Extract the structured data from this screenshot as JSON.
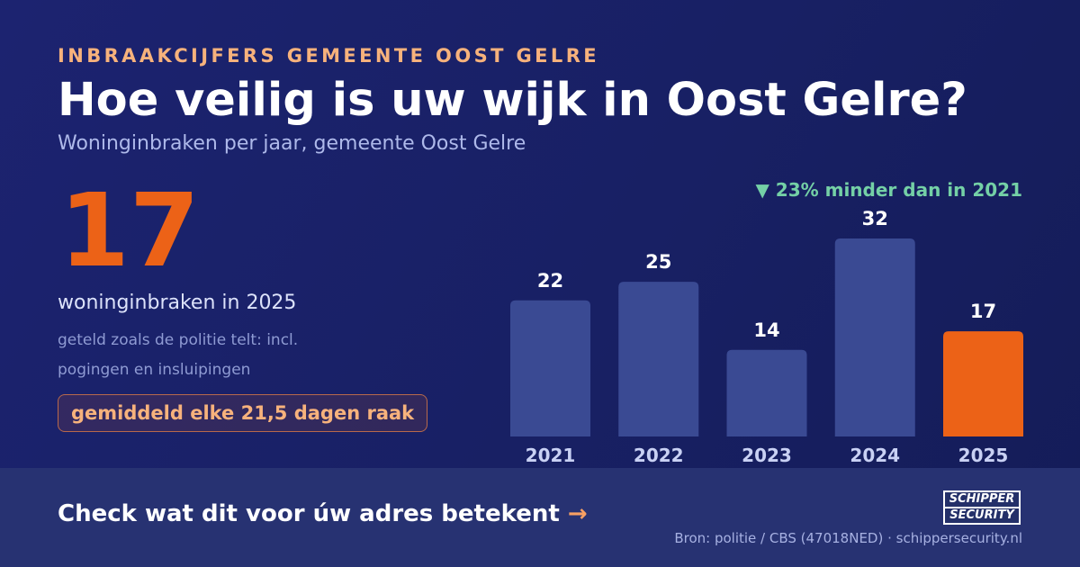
{
  "header": {
    "eyebrow": "INBRAAKCIJFERS GEMEENTE OOST GELRE",
    "title": "Hoe veilig is uw wijk in Oost Gelre?",
    "subtitle": "Woninginbraken per jaar, gemeente Oost Gelre"
  },
  "stat": {
    "value": "17",
    "label": "woninginbraken in 2025",
    "note": "geteld zoals de politie telt: incl. pogingen en insluipingen",
    "pill": "gemiddeld elke 21,5 dagen raak"
  },
  "trend": {
    "text": "▼ 23% minder dan in 2021"
  },
  "chart_data": {
    "type": "bar",
    "categories": [
      "2021",
      "2022",
      "2023",
      "2024",
      "2025"
    ],
    "values": [
      22,
      25,
      14,
      32,
      17
    ],
    "highlight_index": 4,
    "bar_color": "#3a4a93",
    "highlight_color": "#ec6217",
    "grid": false,
    "legend": "none"
  },
  "footer": {
    "cta": "Check wat dit voor úw adres betekent",
    "cta_arrow": "→",
    "logo_top": "SCHIPPER",
    "logo_bottom": "SECURITY",
    "source": "Bron: politie / CBS (47018NED) · schippersecurity.nl"
  }
}
